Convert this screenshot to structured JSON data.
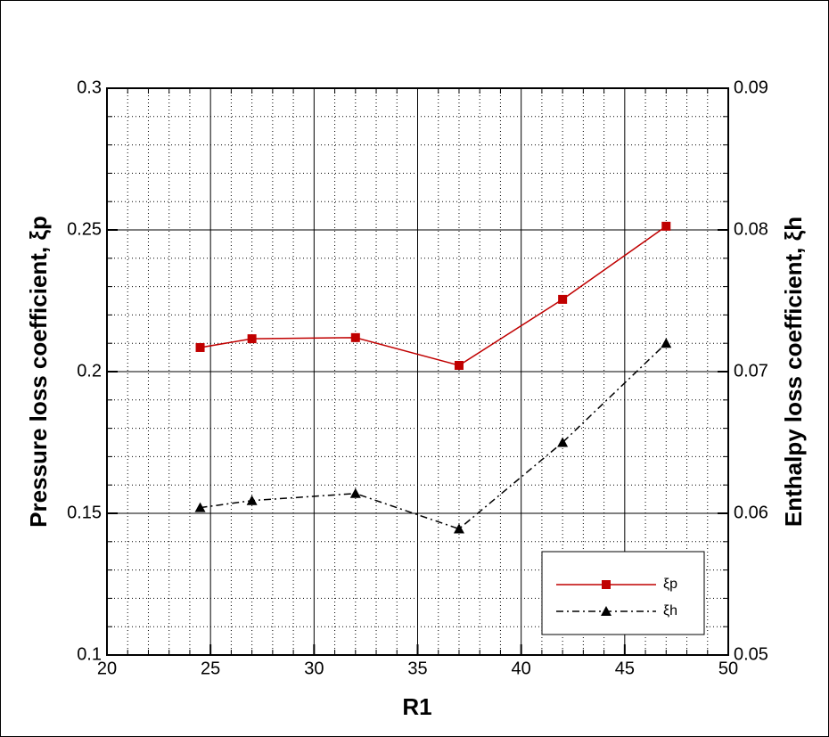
{
  "chart_data": {
    "type": "line",
    "xlabel": "R1",
    "ylabel": "Pressure loss coefficient, ξp",
    "y2label": "Enthalpy loss coefficient, ξh",
    "xlim": [
      20,
      50
    ],
    "xticks": [
      20,
      25,
      30,
      35,
      40,
      45,
      50
    ],
    "ylim": [
      0.1,
      0.3
    ],
    "yticks": [
      0.1,
      0.15,
      0.2,
      0.25,
      0.3
    ],
    "y2lim": [
      0.05,
      0.09
    ],
    "y2ticks": [
      0.05,
      0.06,
      0.07,
      0.08,
      0.09
    ],
    "grid": true,
    "minor_grid": true,
    "legend": "lower right",
    "series": [
      {
        "name": "ξp",
        "color": "#c00000",
        "marker": "square",
        "dash": "solid",
        "x": [
          24.5,
          27,
          32,
          37,
          42,
          47
        ],
        "values": [
          0.2085,
          0.2116,
          0.212,
          0.2022,
          0.2255,
          0.2513
        ]
      },
      {
        "name": "ξh",
        "color": "#000000",
        "marker": "triangle",
        "dash": "dashdot",
        "axis": "y2",
        "x": [
          24.5,
          27,
          32,
          37,
          42,
          47
        ],
        "values": [
          0.0604,
          0.0609,
          0.0614,
          0.0589,
          0.065,
          0.072
        ]
      }
    ]
  }
}
